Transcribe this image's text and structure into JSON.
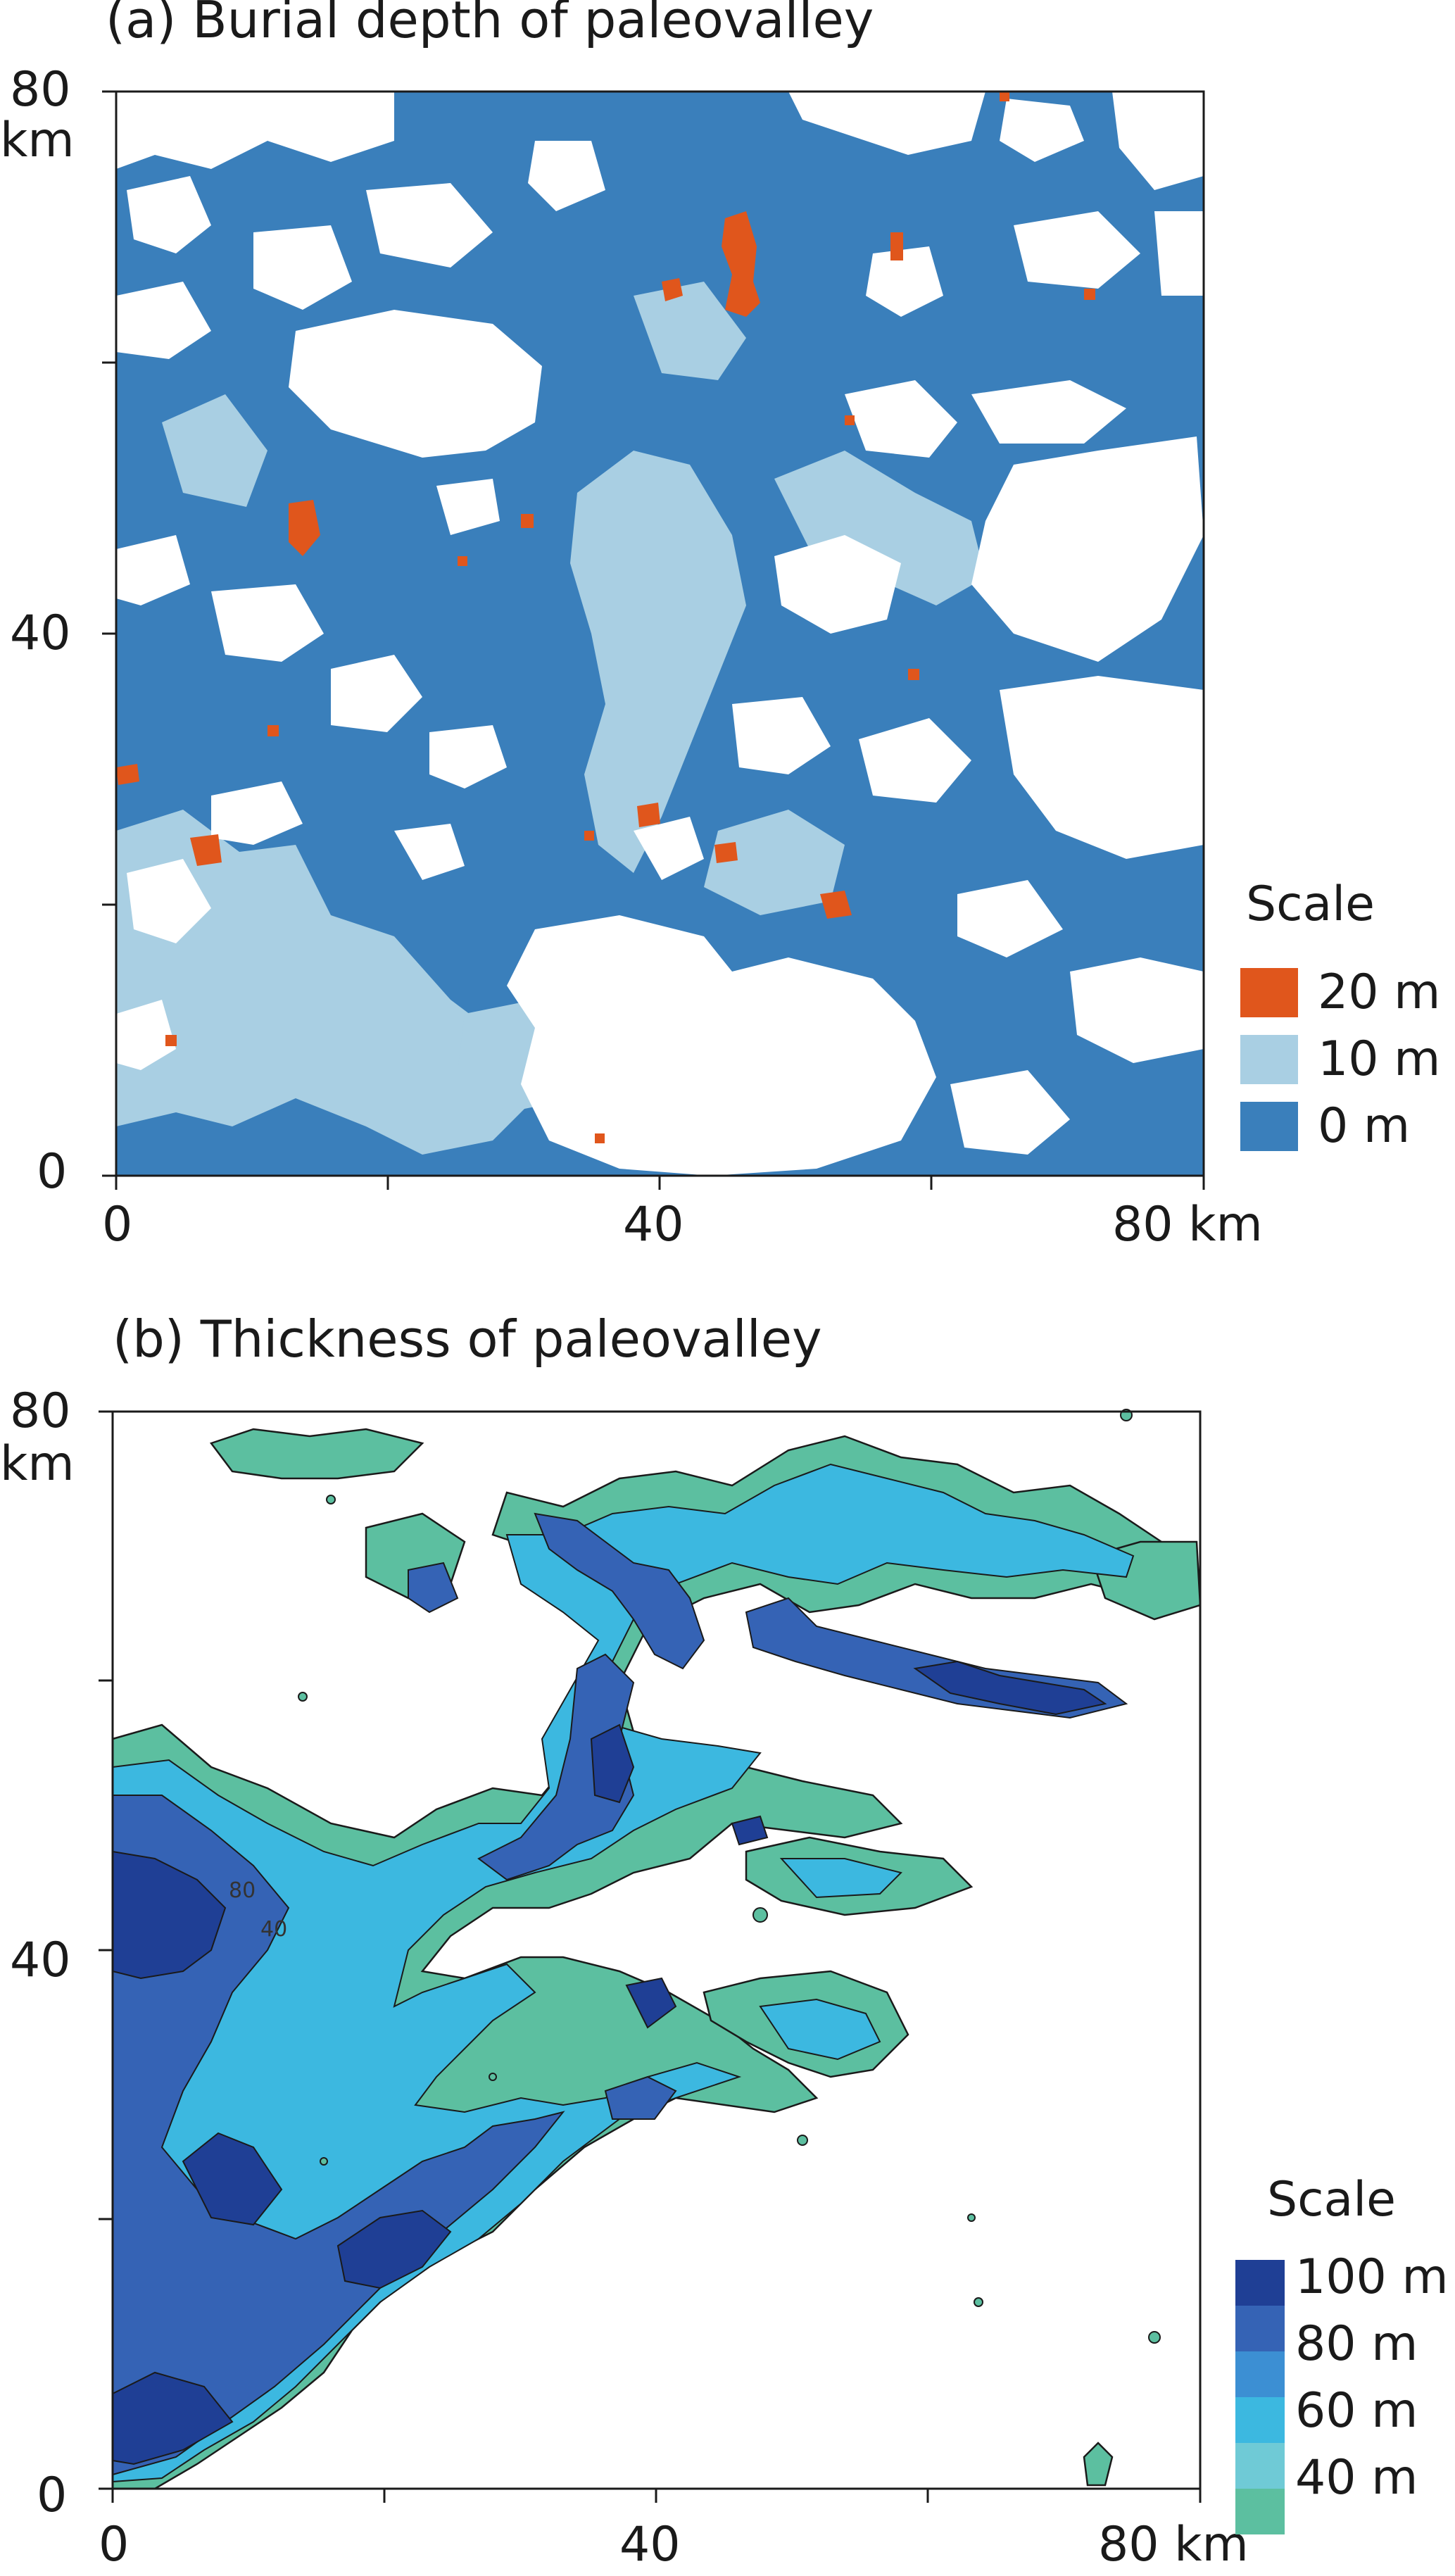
{
  "panel_a": {
    "title": "(a) Burial depth of paleovalley",
    "y_ticks": [
      "80",
      "40",
      "0"
    ],
    "y_unit": "km",
    "x_ticks": [
      "0",
      "40",
      "80 km"
    ],
    "legend_title": "Scale",
    "legend": [
      {
        "label": "20 m",
        "color": "#e0561c"
      },
      {
        "label": "10 m",
        "color": "#a9cfe3"
      },
      {
        "label": "0 m",
        "color": "#3a7fbb"
      }
    ],
    "background_color": "#ffffff"
  },
  "panel_b": {
    "title": "(b) Thickness of paleovalley",
    "y_ticks": [
      "80",
      "40",
      "0"
    ],
    "y_unit": "km",
    "x_ticks": [
      "0",
      "40",
      "80 km"
    ],
    "contour_labels": [
      "80",
      "40"
    ],
    "legend_title": "Scale",
    "legend": [
      {
        "label": "100 m",
        "color": "#1f3f95"
      },
      {
        "label": "80 m",
        "color": "#3563b5"
      },
      {
        "label": "60 m",
        "color": "#3c8fd3"
      },
      {
        "label": "40 m",
        "color": "#3cb8e0"
      },
      {
        "label": "",
        "color": "#6fcad6"
      },
      {
        "label": "",
        "color": "#5cbfa0"
      }
    ]
  }
}
